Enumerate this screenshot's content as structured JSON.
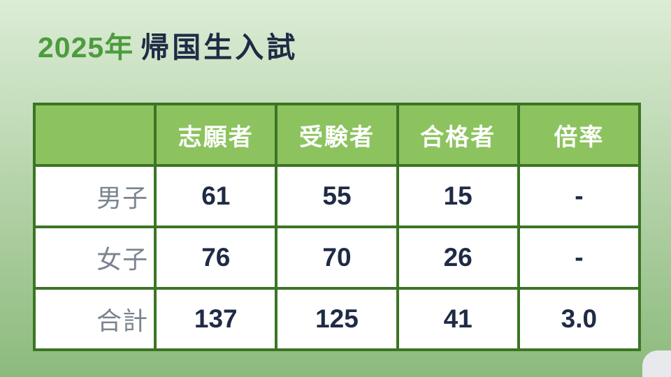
{
  "slide": {
    "title": {
      "year": "2025年",
      "main": "帰国生入試"
    },
    "table": {
      "columns": [
        "",
        "志願者",
        "受験者",
        "合格者",
        "倍率"
      ],
      "rows": [
        {
          "label": "男子",
          "values": [
            "61",
            "55",
            "15",
            "-"
          ]
        },
        {
          "label": "女子",
          "values": [
            "76",
            "70",
            "26",
            "-"
          ]
        },
        {
          "label": "合計",
          "values": [
            "137",
            "125",
            "41",
            "3.0"
          ]
        }
      ]
    },
    "colors": {
      "accent_green": "#4c9c3e",
      "header_green": "#8cc35f",
      "border_green": "#3b7524",
      "text_navy": "#1f2b45",
      "label_gray": "#7a8490",
      "bg_gradient_top": "#dcecd6",
      "bg_gradient_bottom": "#8cba7c",
      "corner_card": "#e7e9ed"
    }
  }
}
